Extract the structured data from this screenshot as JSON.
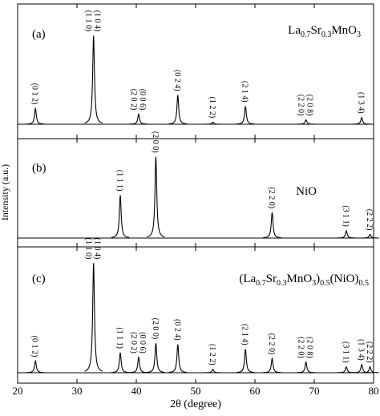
{
  "chart_data": {
    "type": "xrd-stack",
    "xlabel": "2θ (degree)",
    "ylabel": "Intensity (a.u.)",
    "xlim": [
      20,
      80
    ],
    "xticks": [
      20,
      30,
      40,
      50,
      60,
      70,
      80
    ],
    "color": "#000000",
    "panels": [
      {
        "label": "(a)",
        "ylim": [
          0,
          100
        ],
        "title_parts": [
          {
            "text": "La"
          },
          {
            "text": "0.7",
            "sub": true
          },
          {
            "text": "Sr"
          },
          {
            "text": "0.3",
            "sub": true
          },
          {
            "text": "MnO"
          },
          {
            "text": "3",
            "sub": true
          }
        ],
        "x": [
          23.0,
          32.8,
          40.4,
          47.0,
          52.9,
          58.4,
          68.6,
          78.0
        ],
        "values": [
          14,
          79,
          9,
          26,
          2,
          16,
          4,
          6
        ],
        "peak_labels": [
          [
            "(0 1 2)"
          ],
          [
            "(1 1 0)",
            "(1 0 4)"
          ],
          [
            "(2 0 2)",
            "(0 0 6)"
          ],
          [
            "(0 2 4)"
          ],
          [
            "(1 2 2)"
          ],
          [
            "(2 1 4)"
          ],
          [
            "(2 2 0)",
            "(2 0 8)"
          ],
          [
            "(1 3 4)"
          ]
        ]
      },
      {
        "label": "(b)",
        "ylim": [
          0,
          100
        ],
        "title_parts": [
          {
            "text": "NiO"
          }
        ],
        "x": [
          37.3,
          43.3,
          62.9,
          75.4,
          79.4
        ],
        "values": [
          47,
          89,
          28,
          8,
          4
        ],
        "peak_labels": [
          [
            "(1 1 1)"
          ],
          [
            "(2 0 0)"
          ],
          [
            "(2 2 0)"
          ],
          [
            "(3 1 1)"
          ],
          [
            "(2 2 2)"
          ]
        ]
      },
      {
        "label": "(c)",
        "ylim": [
          0,
          100
        ],
        "title_parts": [
          {
            "text": "(La"
          },
          {
            "text": "0.7",
            "sub": true
          },
          {
            "text": "Sr"
          },
          {
            "text": "0.3",
            "sub": true
          },
          {
            "text": "MnO"
          },
          {
            "text": "3",
            "sub": true
          },
          {
            "text": ")"
          },
          {
            "text": "0.5",
            "sub": true
          },
          {
            "text": "(NiO)"
          },
          {
            "text": "0.5",
            "sub": true
          }
        ],
        "x": [
          23.0,
          32.8,
          37.3,
          40.4,
          43.3,
          47.0,
          52.9,
          58.4,
          62.9,
          68.6,
          75.4,
          78.0,
          79.4
        ],
        "values": [
          10,
          93,
          17,
          13,
          25,
          24,
          3,
          20,
          12,
          9,
          5,
          7,
          5
        ],
        "peak_labels": [
          [
            "(0 1 2)"
          ],
          [
            "(1 1 0)",
            "(1 0 4)"
          ],
          [
            "(1 1 1)"
          ],
          [
            "(2 0 2)",
            "(0 0 6)"
          ],
          [
            "(2 0 0)"
          ],
          [
            "(0 2 4)"
          ],
          [
            "(1 2 2)"
          ],
          [
            "(2 1 4)"
          ],
          [
            "(2 2 0)"
          ],
          [
            "(2 2 0)",
            "(2 0 8)"
          ],
          [
            "(3 1 1)"
          ],
          [
            "(1 3 4)"
          ],
          [
            "(2 2 2)"
          ]
        ]
      }
    ]
  }
}
